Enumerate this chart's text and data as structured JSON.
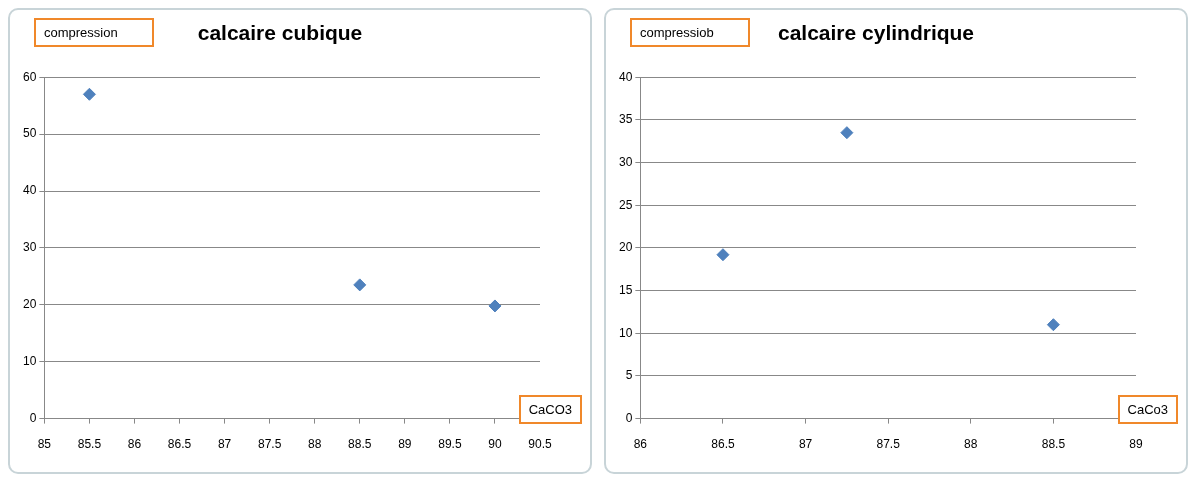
{
  "chart_data": [
    {
      "type": "scatter",
      "title": "calcaire cubique",
      "xlabel": "CaCO3",
      "ylabel": "compression",
      "series": [
        {
          "color": "#4f81bd",
          "x": [
            85.5,
            88.5,
            90
          ],
          "values": [
            57,
            23.5,
            19.8
          ]
        }
      ],
      "xlim": [
        85,
        90.5
      ],
      "xticks": [
        85,
        85.5,
        86,
        86.5,
        87,
        87.5,
        88,
        88.5,
        89,
        89.5,
        90,
        90.5
      ],
      "ylim": [
        0,
        60
      ],
      "yticks": [
        0,
        10,
        20,
        30,
        40,
        50,
        60
      ],
      "grid": "y",
      "legend": false,
      "marker": "diamond"
    },
    {
      "type": "scatter",
      "title": "calcaire cylindrique",
      "xlabel": "CaCo3",
      "ylabel": "compressiob",
      "series": [
        {
          "color": "#4f81bd",
          "x": [
            86.5,
            87.25,
            88.5
          ],
          "values": [
            19.2,
            33.5,
            11
          ]
        }
      ],
      "xlim": [
        86,
        89
      ],
      "xticks": [
        86,
        86.5,
        87,
        87.5,
        88,
        88.5,
        89
      ],
      "ylim": [
        0,
        40
      ],
      "yticks": [
        0,
        5,
        10,
        15,
        20,
        25,
        30,
        35,
        40
      ],
      "grid": "y",
      "legend": false,
      "marker": "diamond"
    }
  ]
}
